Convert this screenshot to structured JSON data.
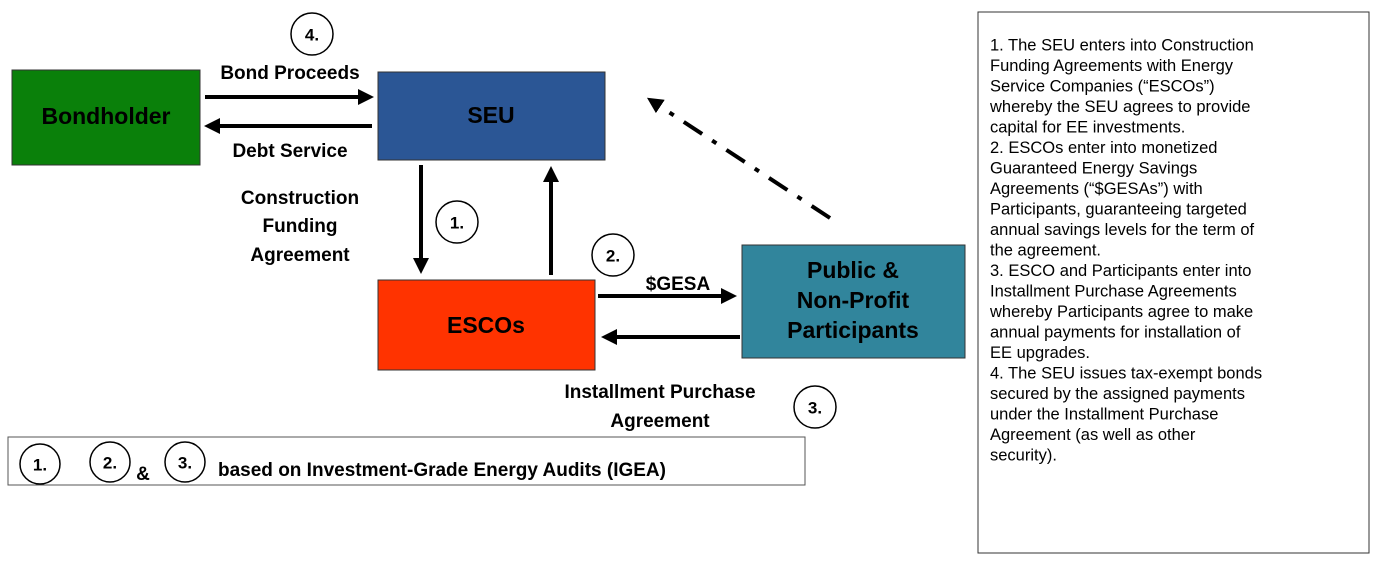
{
  "nodes": [
    {
      "label": [
        "Bondholder"
      ]
    },
    {
      "label": [
        "SEU"
      ]
    },
    {
      "label": [
        "ESCOs"
      ]
    },
    {
      "label": [
        "Public &",
        "Non-Profit",
        "Participants"
      ]
    }
  ],
  "edges": {
    "bond_proceeds": "Bond Proceeds",
    "debt_service": "Debt Service",
    "construction": [
      "Construction",
      "Funding",
      "Agreement"
    ],
    "gesa": "$GESA",
    "installment": [
      "Installment Purchase",
      "Agreement"
    ]
  },
  "steps": [
    "1.",
    "2.",
    "3.",
    "4."
  ],
  "footer": {
    "steps": [
      "1.",
      "2.",
      "3."
    ],
    "and": "&",
    "text": "based on Investment-Grade Energy Audits (IGEA)"
  },
  "notes": [
    [
      "1. The SEU enters into Construction",
      "Funding Agreements with Energy",
      "Service Companies (“ESCOs”)",
      "whereby the SEU agrees to provide",
      "capital for EE investments."
    ],
    [
      "2. ESCOs enter into monetized",
      "Guaranteed Energy Savings",
      "Agreements (“$GESAs”) with",
      "Participants, guaranteeing targeted",
      "annual savings levels for the term of",
      "the agreement."
    ],
    [
      "3. ESCO and Participants enter into",
      "Installment Purchase Agreements",
      "whereby Participants agree to make",
      "annual payments for installation of",
      "EE upgrades."
    ],
    [
      "4. The SEU issues tax-exempt bonds",
      "secured by the assigned payments",
      "under the Installment Purchase",
      "Agreement (as well as other",
      "security)."
    ]
  ]
}
